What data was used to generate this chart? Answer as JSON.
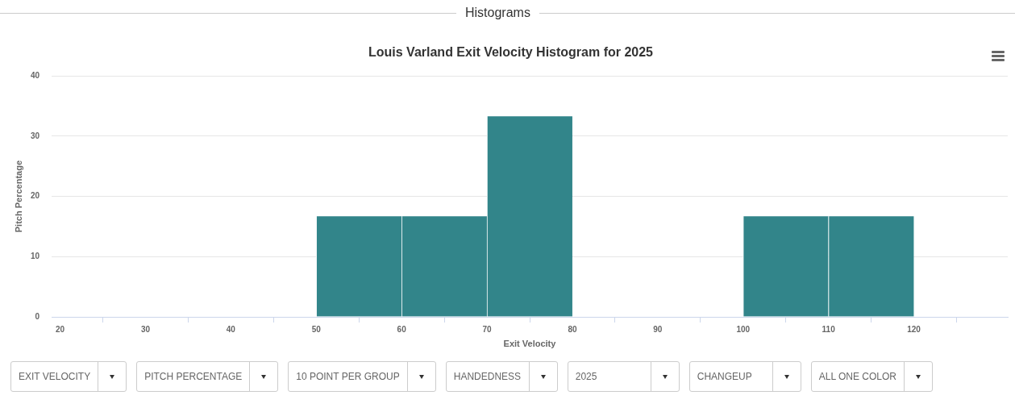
{
  "chart_data": {
    "type": "histogram",
    "title": "Louis Varland Exit Velocity Histogram for 2025",
    "xlabel": "Exit Velocity",
    "ylabel": "Pitch Percentage",
    "bins": [
      50,
      60,
      70,
      80,
      90,
      100,
      110,
      120
    ],
    "values": [
      16.7,
      16.7,
      33.3,
      0,
      0,
      16.7,
      16.7
    ],
    "color": "#32858a",
    "xlim": [
      19,
      131
    ],
    "xticks": [
      20,
      30,
      40,
      50,
      60,
      70,
      80,
      90,
      100,
      110,
      120
    ],
    "ylim": [
      0,
      40
    ],
    "yticks": [
      0,
      10,
      20,
      30,
      40
    ],
    "grid": "y",
    "annotations": [
      "Histograms",
      "EXIT VELOCITY",
      "PITCH PERCENTAGE",
      "10 POINT PER GROUP",
      "HANDEDNESS",
      "2025",
      "CHANGEUP",
      "ALL ONE COLOR"
    ]
  }
}
